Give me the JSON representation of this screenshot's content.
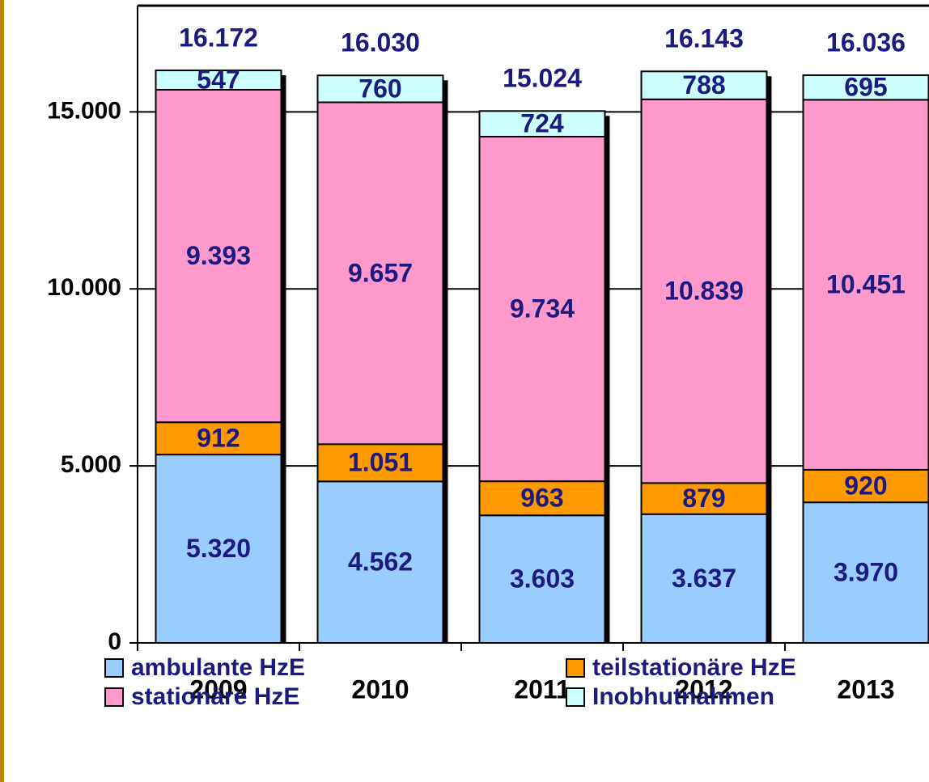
{
  "chart_data": {
    "type": "stacked-bar",
    "categories": [
      "2009",
      "2010",
      "2011",
      "2012",
      "2013"
    ],
    "series": [
      {
        "name": "ambulante HzE",
        "color": "#99ccff",
        "values": [
          5320,
          4562,
          3603,
          3637,
          3970
        ],
        "value_labels": [
          "5.320",
          "4.562",
          "3.603",
          "3.637",
          "3.970"
        ]
      },
      {
        "name": "teilstationäre HzE",
        "color": "#ff9900",
        "values": [
          912,
          1051,
          963,
          879,
          920
        ],
        "value_labels": [
          "912",
          "1.051",
          "963",
          "879",
          "920"
        ]
      },
      {
        "name": "stationäre HzE",
        "color": "#ff99cc",
        "values": [
          9393,
          9657,
          9734,
          10839,
          10451
        ],
        "value_labels": [
          "9.393",
          "9.657",
          "9.734",
          "10.839",
          "10.451"
        ]
      },
      {
        "name": "Inobhutnahmen",
        "color": "#ccffff",
        "values": [
          547,
          760,
          724,
          788,
          695
        ],
        "value_labels": [
          "547",
          "760",
          "724",
          "788",
          "695"
        ]
      }
    ],
    "totals": {
      "values": [
        16172,
        16030,
        15024,
        16143,
        16036
      ],
      "value_labels": [
        "16.172",
        "16.030",
        "15.024",
        "16.143",
        "16.036"
      ]
    },
    "ylim": [
      0,
      18000
    ],
    "yticks": [
      0,
      {
        "value": 5000,
        "label": "5.000"
      },
      {
        "value": 10000,
        "label": "10.000"
      },
      {
        "value": 15000,
        "label": "15.000"
      }
    ],
    "grid": true
  }
}
